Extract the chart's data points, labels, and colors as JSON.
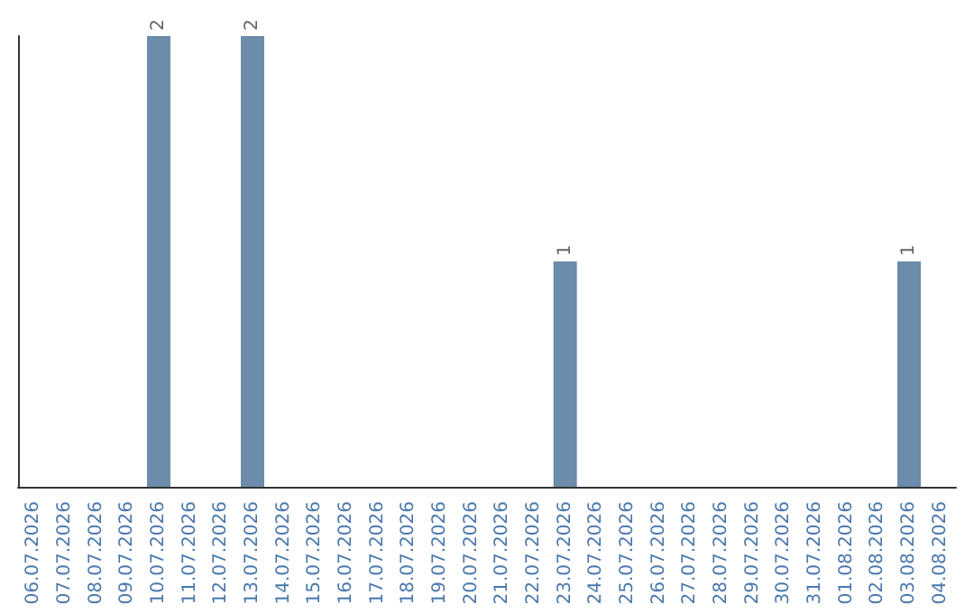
{
  "chart_data": {
    "type": "bar",
    "categories": [
      "06.07.2026",
      "07.07.2026",
      "08.07.2026",
      "09.07.2026",
      "10.07.2026",
      "11.07.2026",
      "12.07.2026",
      "13.07.2026",
      "14.07.2026",
      "15.07.2026",
      "16.07.2026",
      "17.07.2026",
      "18.07.2026",
      "19.07.2026",
      "20.07.2026",
      "21.07.2026",
      "22.07.2026",
      "23.07.2026",
      "24.07.2026",
      "25.07.2026",
      "26.07.2026",
      "27.07.2026",
      "28.07.2026",
      "29.07.2026",
      "30.07.2026",
      "31.07.2026",
      "01.08.2026",
      "02.08.2026",
      "03.08.2026",
      "04.08.2026"
    ],
    "values": [
      0,
      0,
      0,
      0,
      2,
      0,
      0,
      2,
      0,
      0,
      0,
      0,
      0,
      0,
      0,
      0,
      0,
      1,
      0,
      0,
      0,
      0,
      0,
      0,
      0,
      0,
      0,
      0,
      1,
      0
    ],
    "value_labels": [
      null,
      null,
      null,
      null,
      "2",
      null,
      null,
      "2",
      null,
      null,
      null,
      null,
      null,
      null,
      null,
      null,
      null,
      "1",
      null,
      null,
      null,
      null,
      null,
      null,
      null,
      null,
      null,
      null,
      "1",
      null
    ],
    "color": "#6b8caa"
  }
}
